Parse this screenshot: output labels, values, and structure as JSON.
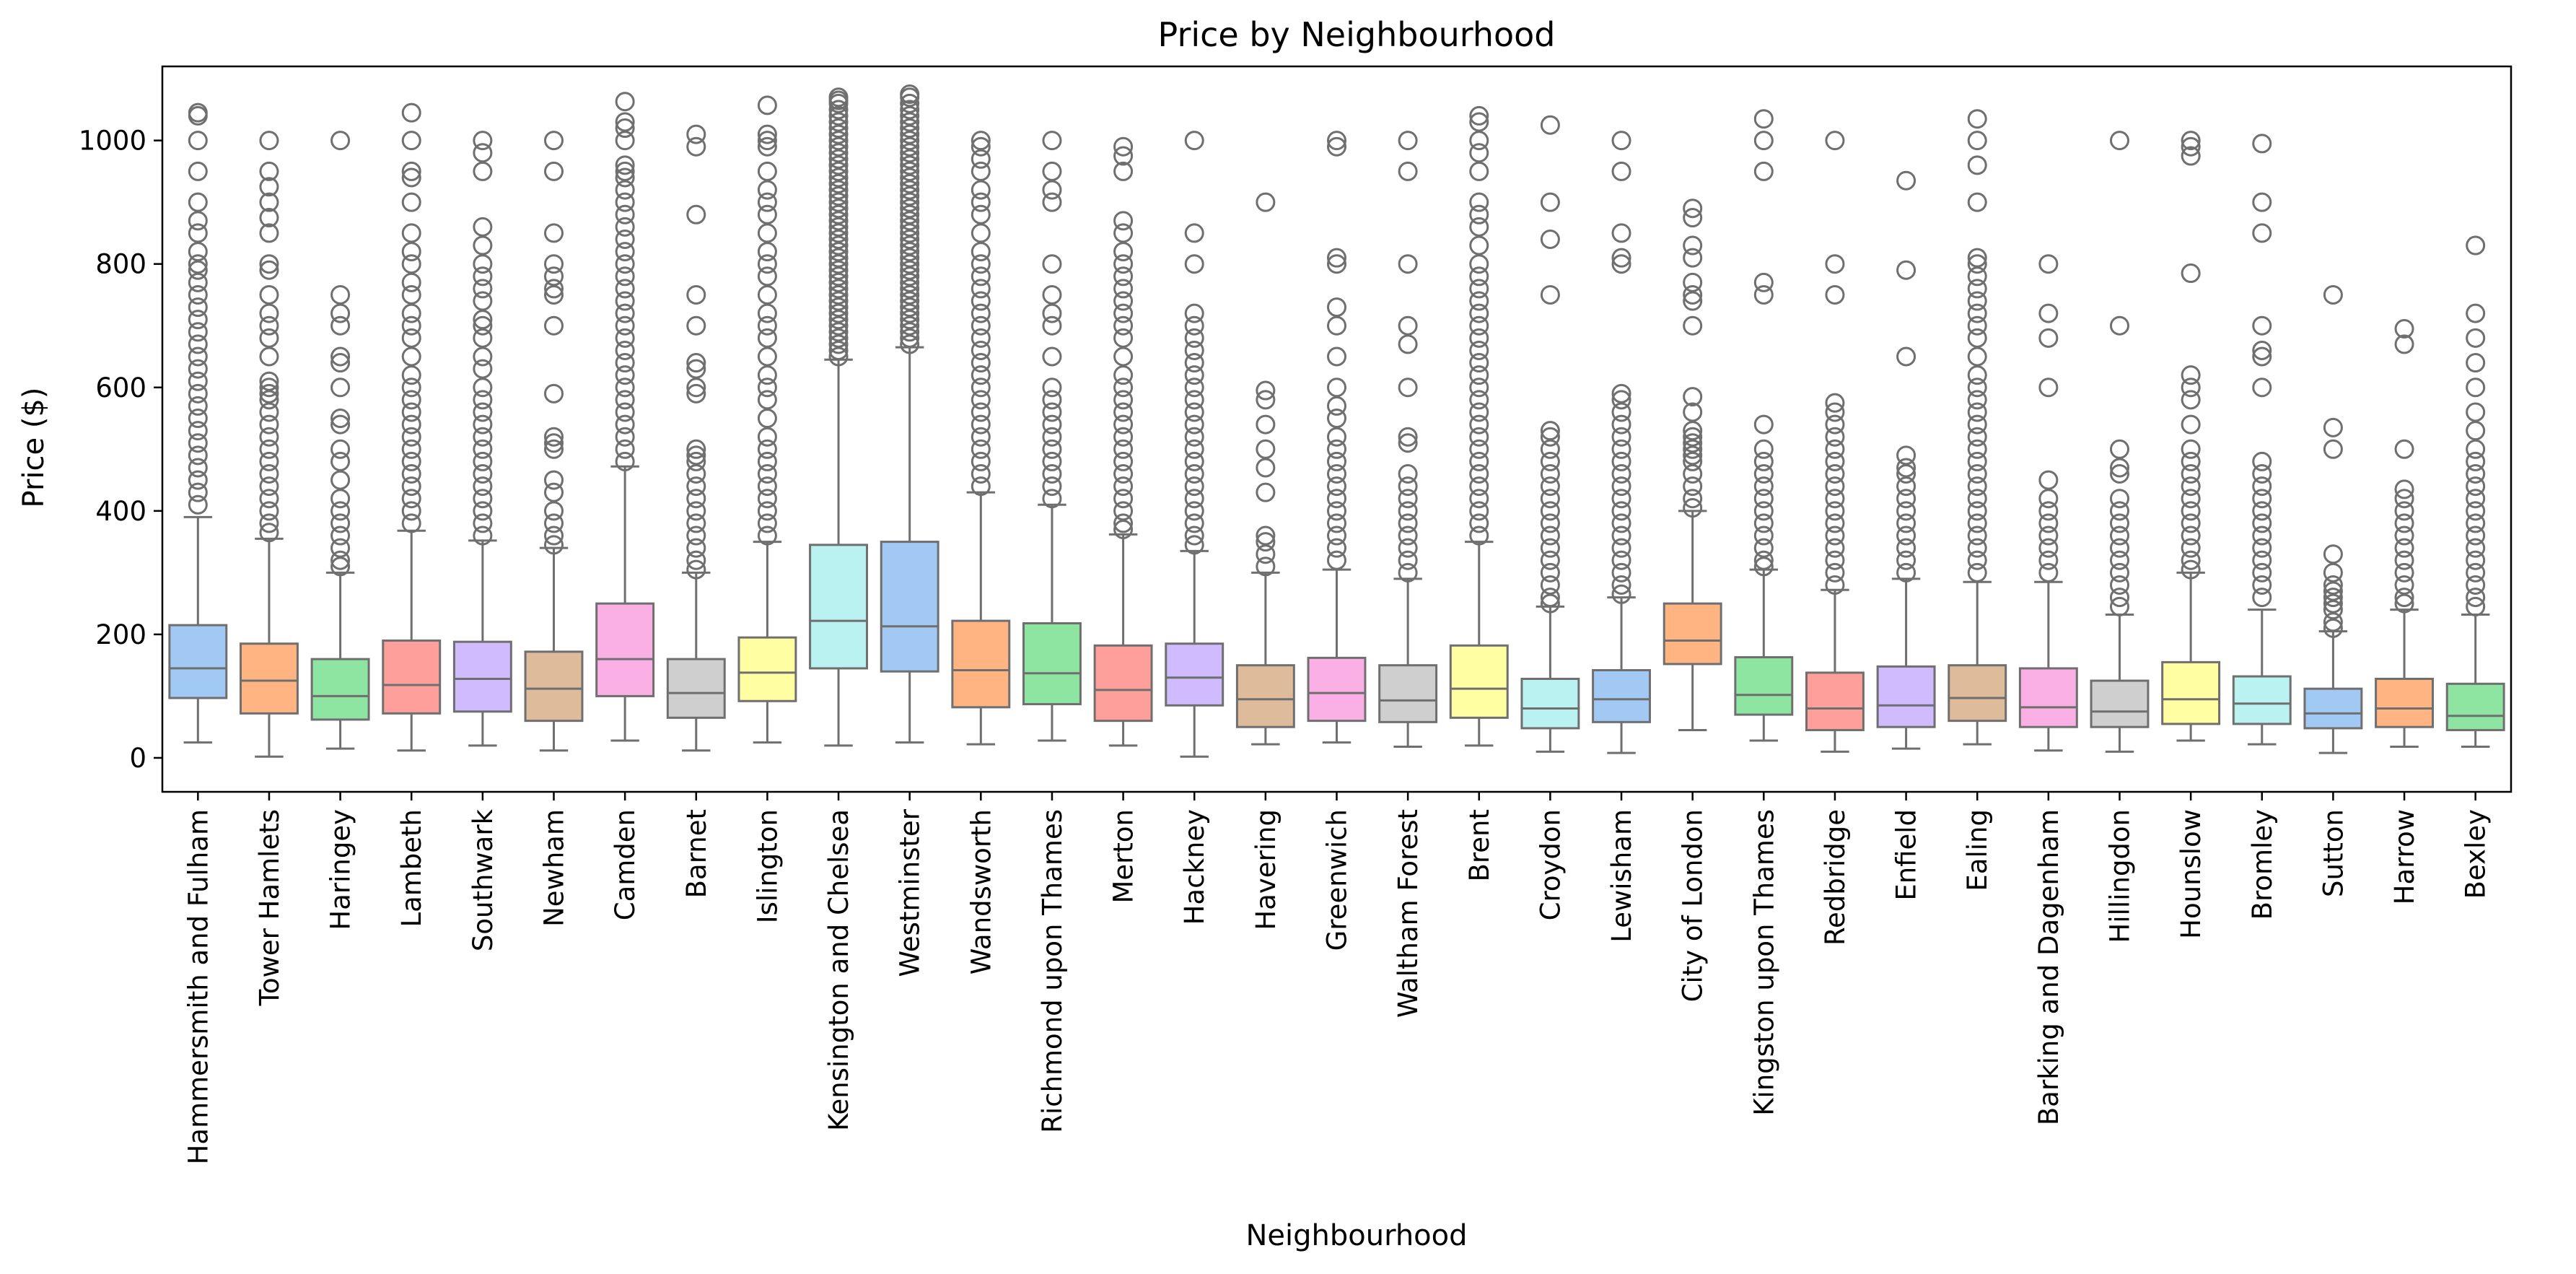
{
  "chart_data": {
    "type": "box",
    "title": "Price by Neighbourhood",
    "xlabel": "Neighbourhood",
    "ylabel": "Price ($)",
    "ylim": [
      -55,
      1120
    ],
    "yticks": [
      0,
      200,
      400,
      600,
      800,
      1000
    ],
    "grid": false,
    "legend": "none",
    "palette": [
      "#a1c9f4",
      "#ffb482",
      "#8de5a1",
      "#ff9f9b",
      "#d0bbff",
      "#debb9b",
      "#fab0e4",
      "#cfcfcf",
      "#fffea3",
      "#b9f2f0"
    ],
    "categories": [
      "Hammersmith and Fulham",
      "Tower Hamlets",
      "Haringey",
      "Lambeth",
      "Southwark",
      "Newham",
      "Camden",
      "Barnet",
      "Islington",
      "Kensington and Chelsea",
      "Westminster",
      "Wandsworth",
      "Richmond upon Thames",
      "Merton",
      "Hackney",
      "Havering",
      "Greenwich",
      "Waltham Forest",
      "Brent",
      "Croydon",
      "Lewisham",
      "City of London",
      "Kingston upon Thames",
      "Redbridge",
      "Enfield",
      "Ealing",
      "Barking and Dagenham",
      "Hillingdon",
      "Hounslow",
      "Bromley",
      "Sutton",
      "Harrow",
      "Bexley"
    ],
    "boxes": [
      {
        "whislo": 25,
        "q1": 97,
        "med": 145,
        "q3": 215,
        "whishi": 390,
        "fliers": [
          1040,
          1045,
          1000,
          950,
          900,
          870,
          850,
          820,
          800,
          790,
          770,
          750,
          730,
          710,
          690,
          670,
          650,
          630,
          610,
          590,
          570,
          550,
          530,
          510,
          490,
          470,
          450,
          430,
          410
        ]
      },
      {
        "whislo": 2,
        "q1": 72,
        "med": 125,
        "q3": 185,
        "whishi": 355,
        "fliers": [
          1000,
          950,
          925,
          900,
          875,
          850,
          800,
          790,
          750,
          720,
          700,
          680,
          650,
          610,
          600,
          590,
          580,
          560,
          540,
          520,
          500,
          480,
          460,
          440,
          420,
          400,
          380,
          365
        ]
      },
      {
        "whislo": 15,
        "q1": 62,
        "med": 100,
        "q3": 160,
        "whishi": 300,
        "fliers": [
          1000,
          750,
          720,
          700,
          650,
          640,
          600,
          550,
          540,
          500,
          480,
          450,
          420,
          400,
          380,
          360,
          340,
          320,
          310
        ]
      },
      {
        "whislo": 12,
        "q1": 72,
        "med": 118,
        "q3": 190,
        "whishi": 368,
        "fliers": [
          1045,
          1000,
          950,
          940,
          900,
          850,
          820,
          800,
          770,
          750,
          720,
          700,
          680,
          650,
          620,
          600,
          580,
          560,
          540,
          520,
          500,
          480,
          460,
          440,
          420,
          400,
          380
        ]
      },
      {
        "whislo": 20,
        "q1": 75,
        "med": 128,
        "q3": 188,
        "whishi": 352,
        "fliers": [
          1000,
          980,
          950,
          860,
          830,
          800,
          780,
          760,
          740,
          710,
          700,
          680,
          650,
          630,
          600,
          580,
          560,
          540,
          520,
          500,
          480,
          460,
          440,
          420,
          400,
          380,
          360
        ]
      },
      {
        "whislo": 12,
        "q1": 60,
        "med": 112,
        "q3": 172,
        "whishi": 340,
        "fliers": [
          1000,
          950,
          850,
          800,
          780,
          760,
          750,
          700,
          590,
          520,
          510,
          500,
          450,
          430,
          400,
          380,
          360,
          345
        ]
      },
      {
        "whislo": 28,
        "q1": 100,
        "med": 160,
        "q3": 250,
        "whishi": 472,
        "fliers": [
          1063,
          1030,
          1020,
          1000,
          960,
          950,
          940,
          920,
          900,
          880,
          860,
          840,
          820,
          800,
          780,
          760,
          740,
          720,
          700,
          680,
          660,
          640,
          620,
          600,
          580,
          560,
          540,
          520,
          500,
          480
        ]
      },
      {
        "whislo": 12,
        "q1": 65,
        "med": 105,
        "q3": 160,
        "whishi": 300,
        "fliers": [
          1010,
          990,
          880,
          750,
          700,
          640,
          630,
          600,
          590,
          500,
          490,
          480,
          460,
          440,
          420,
          400,
          380,
          360,
          340,
          320,
          305
        ]
      },
      {
        "whislo": 25,
        "q1": 92,
        "med": 138,
        "q3": 195,
        "whishi": 350,
        "fliers": [
          1057,
          1010,
          1000,
          990,
          950,
          920,
          900,
          880,
          850,
          820,
          800,
          780,
          750,
          720,
          700,
          680,
          650,
          620,
          600,
          580,
          550,
          520,
          500,
          480,
          460,
          440,
          420,
          400,
          380,
          360
        ]
      },
      {
        "whislo": 20,
        "q1": 145,
        "med": 222,
        "q3": 345,
        "whishi": 645,
        "fliers": [
          1070,
          1065,
          1060,
          1050,
          1040,
          1030,
          1020,
          1010,
          1000,
          990,
          980,
          970,
          960,
          950,
          940,
          930,
          920,
          910,
          900,
          890,
          880,
          870,
          860,
          850,
          840,
          830,
          820,
          810,
          800,
          790,
          780,
          770,
          760,
          750,
          740,
          730,
          720,
          710,
          700,
          690,
          680,
          670,
          660,
          650
        ]
      },
      {
        "whislo": 25,
        "q1": 140,
        "med": 213,
        "q3": 350,
        "whishi": 665,
        "fliers": [
          1075,
          1070,
          1060,
          1050,
          1040,
          1030,
          1020,
          1010,
          1000,
          990,
          980,
          970,
          960,
          950,
          940,
          930,
          920,
          910,
          900,
          890,
          880,
          870,
          860,
          850,
          840,
          830,
          820,
          810,
          800,
          790,
          780,
          770,
          760,
          750,
          740,
          730,
          720,
          710,
          700,
          690,
          680,
          670
        ]
      },
      {
        "whislo": 22,
        "q1": 82,
        "med": 142,
        "q3": 222,
        "whishi": 430,
        "fliers": [
          1000,
          990,
          970,
          950,
          920,
          900,
          880,
          850,
          820,
          800,
          780,
          760,
          740,
          720,
          700,
          680,
          660,
          640,
          620,
          600,
          580,
          560,
          540,
          520,
          500,
          480,
          460,
          440
        ]
      },
      {
        "whislo": 28,
        "q1": 87,
        "med": 137,
        "q3": 218,
        "whishi": 410,
        "fliers": [
          1000,
          950,
          920,
          900,
          800,
          750,
          720,
          700,
          650,
          600,
          580,
          560,
          540,
          520,
          500,
          480,
          460,
          440,
          420
        ]
      },
      {
        "whislo": 20,
        "q1": 60,
        "med": 110,
        "q3": 182,
        "whishi": 362,
        "fliers": [
          990,
          975,
          950,
          870,
          850,
          820,
          800,
          780,
          760,
          740,
          720,
          700,
          680,
          650,
          620,
          600,
          580,
          560,
          540,
          520,
          500,
          480,
          460,
          440,
          420,
          400,
          380,
          370
        ]
      },
      {
        "whislo": 2,
        "q1": 85,
        "med": 130,
        "q3": 185,
        "whishi": 335,
        "fliers": [
          1000,
          850,
          800,
          720,
          700,
          680,
          660,
          640,
          620,
          600,
          580,
          560,
          540,
          520,
          500,
          480,
          460,
          440,
          420,
          400,
          380,
          360,
          345
        ]
      },
      {
        "whislo": 22,
        "q1": 50,
        "med": 95,
        "q3": 150,
        "whishi": 300,
        "fliers": [
          900,
          595,
          580,
          540,
          500,
          470,
          430,
          360,
          350,
          330,
          310
        ]
      },
      {
        "whislo": 25,
        "q1": 60,
        "med": 105,
        "q3": 162,
        "whishi": 305,
        "fliers": [
          1000,
          990,
          810,
          800,
          730,
          700,
          650,
          600,
          570,
          550,
          520,
          500,
          480,
          460,
          440,
          420,
          400,
          380,
          360,
          340,
          320
        ]
      },
      {
        "whislo": 18,
        "q1": 58,
        "med": 93,
        "q3": 150,
        "whishi": 290,
        "fliers": [
          1000,
          950,
          800,
          700,
          670,
          600,
          520,
          510,
          460,
          440,
          420,
          400,
          380,
          360,
          340,
          320,
          300
        ]
      },
      {
        "whislo": 20,
        "q1": 65,
        "med": 112,
        "q3": 182,
        "whishi": 350,
        "fliers": [
          1040,
          1030,
          1000,
          980,
          950,
          900,
          880,
          860,
          830,
          800,
          780,
          760,
          740,
          720,
          700,
          680,
          660,
          640,
          620,
          600,
          580,
          560,
          540,
          520,
          500,
          480,
          460,
          440,
          420,
          400,
          380,
          360
        ]
      },
      {
        "whislo": 10,
        "q1": 48,
        "med": 80,
        "q3": 128,
        "whishi": 245,
        "fliers": [
          1025,
          900,
          840,
          750,
          530,
          520,
          500,
          480,
          460,
          440,
          420,
          400,
          380,
          360,
          340,
          320,
          300,
          280,
          260,
          250
        ]
      },
      {
        "whislo": 8,
        "q1": 58,
        "med": 95,
        "q3": 142,
        "whishi": 260,
        "fliers": [
          1000,
          950,
          850,
          810,
          800,
          590,
          580,
          560,
          540,
          520,
          500,
          480,
          460,
          440,
          420,
          400,
          380,
          360,
          340,
          320,
          300,
          280,
          265
        ]
      },
      {
        "whislo": 45,
        "q1": 152,
        "med": 190,
        "q3": 250,
        "whishi": 400,
        "fliers": [
          890,
          875,
          830,
          810,
          770,
          750,
          740,
          700,
          585,
          560,
          530,
          520,
          510,
          500,
          490,
          480,
          460,
          440,
          420,
          405
        ]
      },
      {
        "whislo": 28,
        "q1": 70,
        "med": 102,
        "q3": 163,
        "whishi": 305,
        "fliers": [
          1035,
          1000,
          950,
          770,
          750,
          540,
          500,
          480,
          460,
          440,
          420,
          400,
          380,
          360,
          340,
          320,
          310
        ]
      },
      {
        "whislo": 10,
        "q1": 45,
        "med": 80,
        "q3": 138,
        "whishi": 272,
        "fliers": [
          1000,
          800,
          750,
          575,
          560,
          540,
          520,
          500,
          480,
          460,
          440,
          420,
          400,
          380,
          360,
          340,
          320,
          300,
          280
        ]
      },
      {
        "whislo": 15,
        "q1": 50,
        "med": 85,
        "q3": 148,
        "whishi": 290,
        "fliers": [
          935,
          790,
          650,
          490,
          470,
          460,
          440,
          420,
          400,
          380,
          360,
          340,
          320,
          300
        ]
      },
      {
        "whislo": 22,
        "q1": 60,
        "med": 97,
        "q3": 150,
        "whishi": 285,
        "fliers": [
          1035,
          1000,
          960,
          900,
          810,
          800,
          780,
          760,
          740,
          720,
          700,
          680,
          650,
          620,
          600,
          580,
          560,
          540,
          520,
          500,
          480,
          460,
          440,
          420,
          400,
          380,
          360,
          340,
          320,
          300
        ]
      },
      {
        "whislo": 12,
        "q1": 50,
        "med": 82,
        "q3": 145,
        "whishi": 285,
        "fliers": [
          800,
          720,
          680,
          600,
          450,
          420,
          400,
          380,
          360,
          340,
          320,
          300
        ]
      },
      {
        "whislo": 10,
        "q1": 50,
        "med": 75,
        "q3": 125,
        "whishi": 232,
        "fliers": [
          1000,
          700,
          500,
          470,
          460,
          420,
          400,
          380,
          360,
          340,
          320,
          300,
          280,
          260,
          245
        ]
      },
      {
        "whislo": 28,
        "q1": 55,
        "med": 95,
        "q3": 155,
        "whishi": 300,
        "fliers": [
          1000,
          990,
          975,
          785,
          620,
          600,
          580,
          540,
          500,
          480,
          460,
          440,
          420,
          400,
          380,
          360,
          340,
          320,
          305
        ]
      },
      {
        "whislo": 22,
        "q1": 55,
        "med": 88,
        "q3": 132,
        "whishi": 240,
        "fliers": [
          995,
          900,
          850,
          700,
          660,
          650,
          600,
          480,
          460,
          440,
          420,
          400,
          380,
          360,
          340,
          320,
          300,
          280,
          260
        ]
      },
      {
        "whislo": 8,
        "q1": 48,
        "med": 72,
        "q3": 112,
        "whishi": 205,
        "fliers": [
          750,
          535,
          500,
          330,
          300,
          280,
          270,
          260,
          250,
          240,
          220,
          210
        ]
      },
      {
        "whislo": 18,
        "q1": 50,
        "med": 80,
        "q3": 128,
        "whishi": 240,
        "fliers": [
          695,
          670,
          500,
          435,
          420,
          400,
          380,
          360,
          340,
          320,
          300,
          280,
          260,
          250
        ]
      },
      {
        "whislo": 18,
        "q1": 45,
        "med": 68,
        "q3": 120,
        "whishi": 232,
        "fliers": [
          830,
          720,
          680,
          640,
          600,
          560,
          530,
          500,
          480,
          460,
          440,
          420,
          400,
          380,
          360,
          340,
          320,
          300,
          280,
          260,
          245
        ]
      }
    ]
  }
}
